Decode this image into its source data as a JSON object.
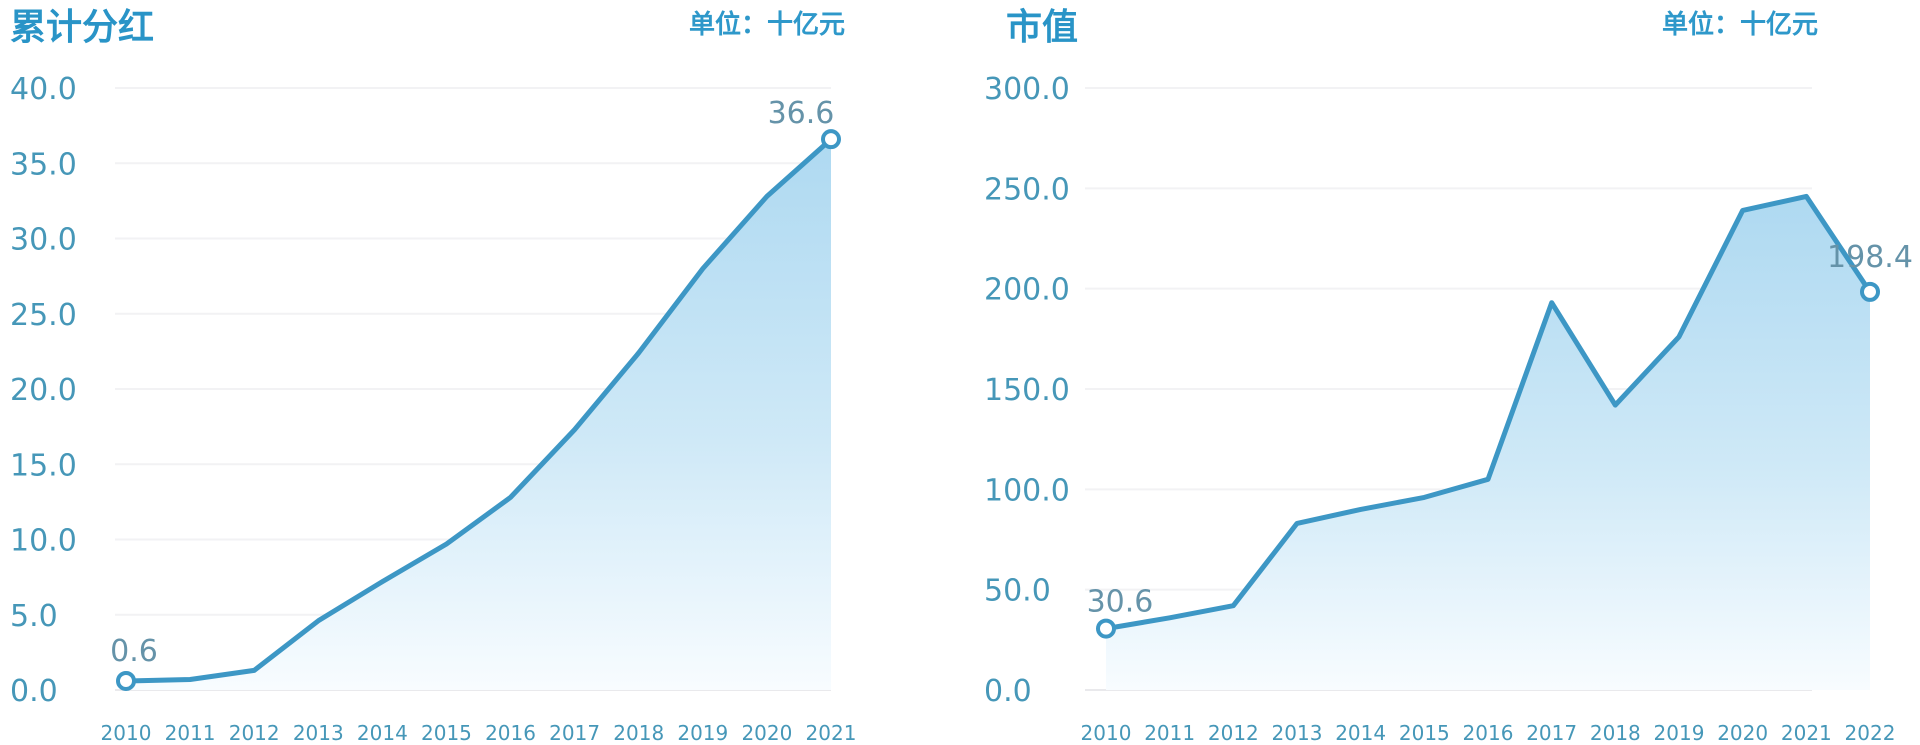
{
  "colors": {
    "background": "#ffffff",
    "title": "#2994c7",
    "unit": "#2e98ca",
    "tick_label": "#4697b8",
    "year_label": "#4697b8",
    "data_label": "#6593a9",
    "line": "#3d97c5",
    "grid": "#f2f2f4",
    "axis_line": "#e9e9ec",
    "marker_fill": "#ffffff",
    "area_top": "#aed9f1",
    "area_mid": "#cfe9f7",
    "area_bottom": "#f8fcff"
  },
  "chart_data": [
    {
      "type": "area",
      "title": "累计分红",
      "unit": "单位：十亿元",
      "xlabel": "",
      "ylabel": "",
      "grid": true,
      "legend": "none",
      "ylim": [
        0,
        40
      ],
      "ytick_step": 5,
      "ytick_labels": [
        "40.0",
        "35.0",
        "30.0",
        "25.0",
        "20.0",
        "15.0",
        "10.0",
        "5.0",
        "0.0"
      ],
      "categories": [
        "2010",
        "2011",
        "2012",
        "2013",
        "2014",
        "2015",
        "2016",
        "2017",
        "2018",
        "2019",
        "2020",
        "2021"
      ],
      "series": [
        {
          "name": "累计分红",
          "values": [
            0.6,
            0.7,
            1.3,
            4.6,
            7.2,
            9.7,
            12.8,
            17.3,
            22.4,
            28.0,
            32.8,
            36.6
          ]
        }
      ],
      "first_label": "0.6",
      "last_label": "36.6"
    },
    {
      "type": "area",
      "title": "市值",
      "unit": "单位：十亿元",
      "xlabel": "",
      "ylabel": "",
      "grid": true,
      "legend": "none",
      "ylim": [
        0,
        300
      ],
      "ytick_step": 50,
      "ytick_labels": [
        "300.0",
        "250.0",
        "200.0",
        "150.0",
        "100.0",
        "50.0",
        "0.0"
      ],
      "categories": [
        "2010",
        "2011",
        "2012",
        "2013",
        "2014",
        "2015",
        "2016",
        "2017",
        "2018",
        "2019",
        "2020",
        "2021",
        "2022"
      ],
      "series": [
        {
          "name": "市值",
          "values": [
            30.6,
            36.0,
            42.0,
            83.0,
            90.0,
            96.0,
            105.0,
            193.0,
            142.0,
            176.0,
            239.0,
            246.0,
            198.4
          ]
        }
      ],
      "first_label": "30.6",
      "last_label": "198.4"
    }
  ]
}
